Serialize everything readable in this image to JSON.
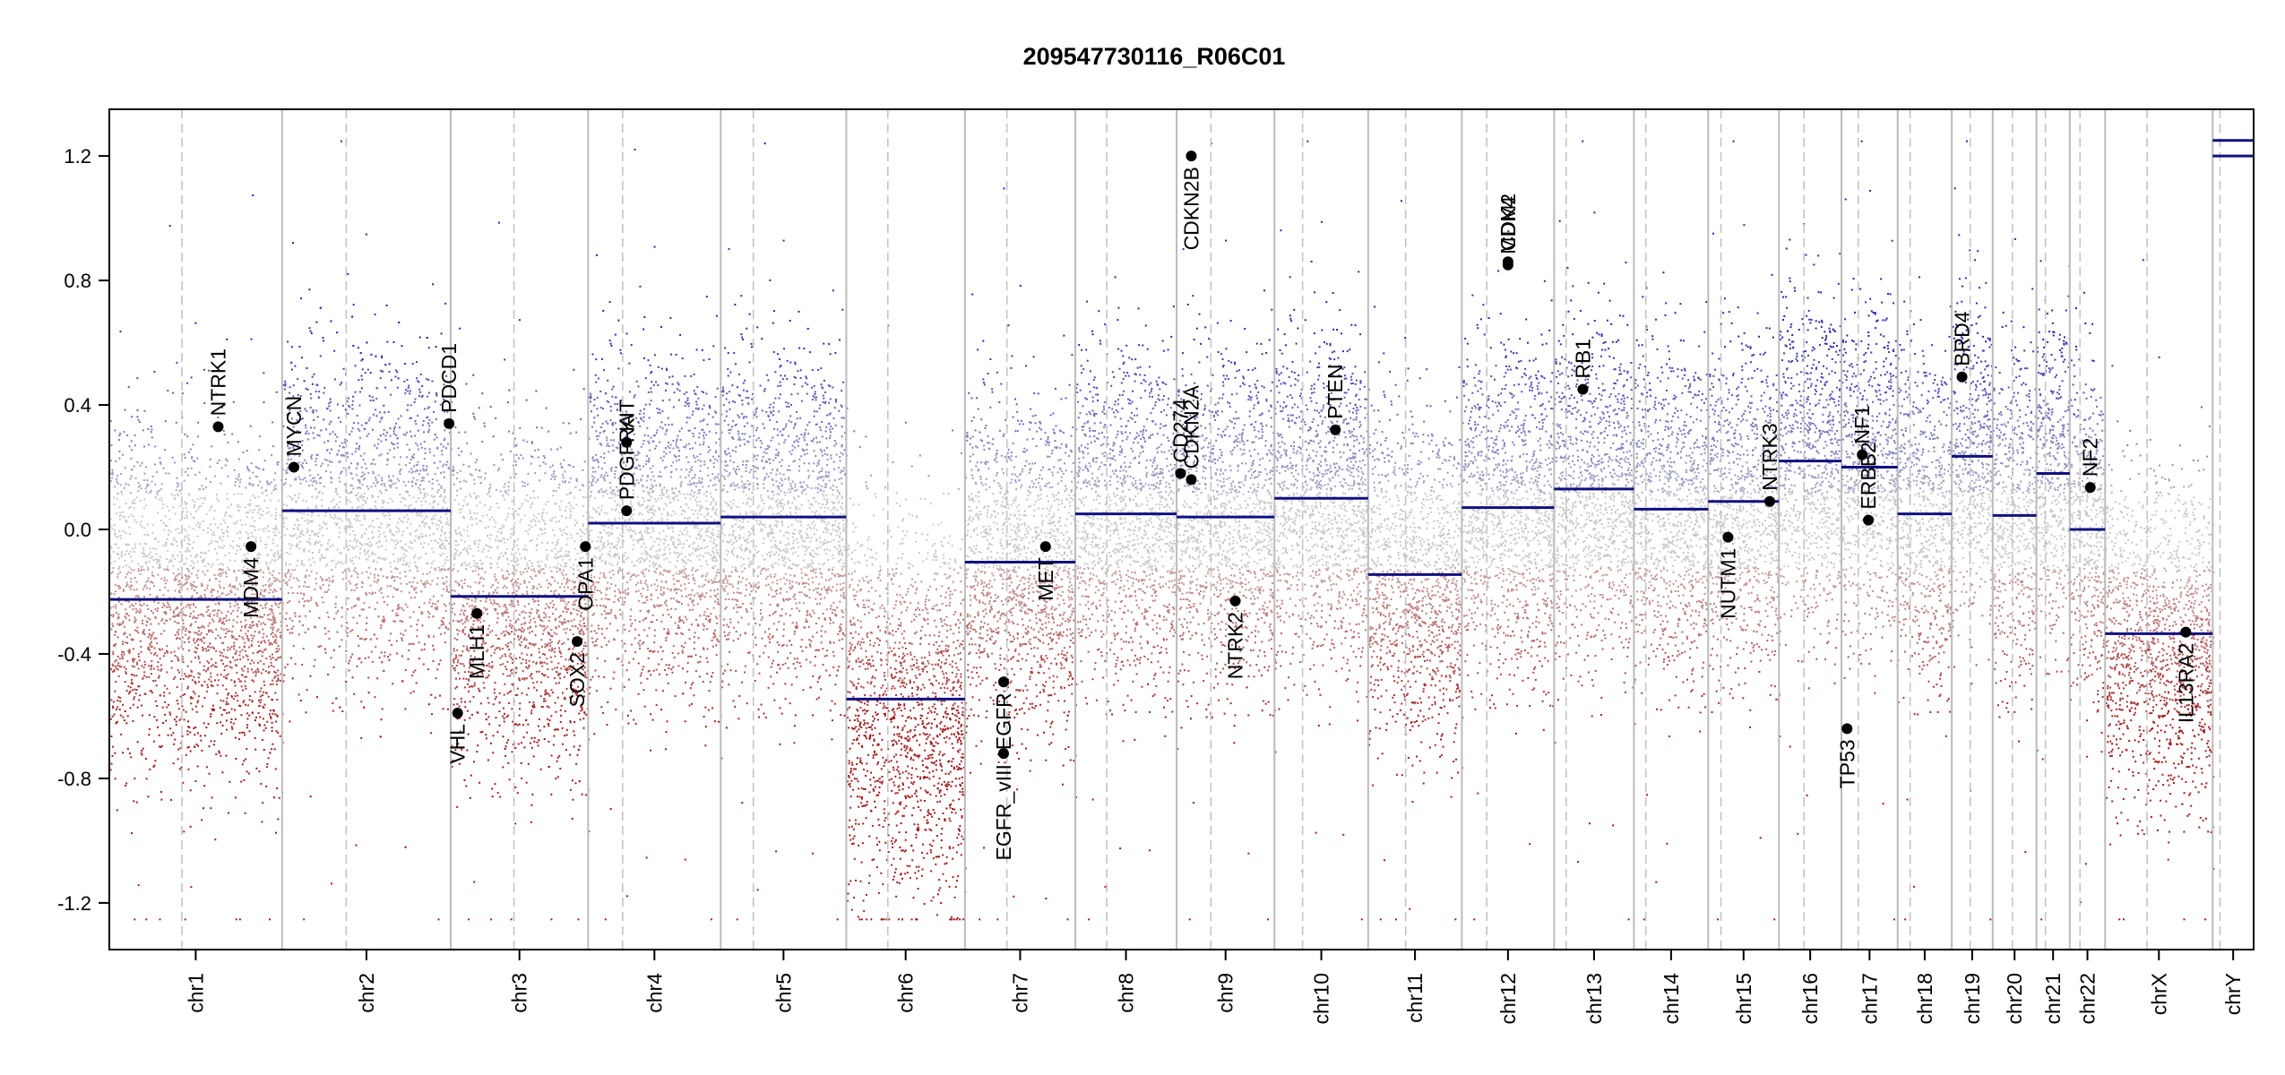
{
  "chart_data": {
    "type": "scatter",
    "title": "209547730116_R06C01",
    "xlabel": "",
    "ylabel": "",
    "ylim": [
      -1.35,
      1.35
    ],
    "y_ticks": [
      -1.2,
      -0.8,
      -0.4,
      0.0,
      0.4,
      0.8,
      1.2
    ],
    "y_tick_labels": [
      "-1.2",
      "-0.8",
      "-0.4",
      "0.0",
      "0.4",
      "0.8",
      "1.2"
    ],
    "chromosomes": [
      {
        "name": "chr1",
        "size": 249,
        "centromere": 0.42
      },
      {
        "name": "chr2",
        "size": 243,
        "centromere": 0.38
      },
      {
        "name": "chr3",
        "size": 198,
        "centromere": 0.46
      },
      {
        "name": "chr4",
        "size": 191,
        "centromere": 0.26
      },
      {
        "name": "chr5",
        "size": 181,
        "centromere": 0.26
      },
      {
        "name": "chr6",
        "size": 171,
        "centromere": 0.35
      },
      {
        "name": "chr7",
        "size": 159,
        "centromere": 0.38
      },
      {
        "name": "chr8",
        "size": 146,
        "centromere": 0.31
      },
      {
        "name": "chr9",
        "size": 141,
        "centromere": 0.35
      },
      {
        "name": "chr10",
        "size": 135,
        "centromere": 0.3
      },
      {
        "name": "chr11",
        "size": 135,
        "centromere": 0.4
      },
      {
        "name": "chr12",
        "size": 133,
        "centromere": 0.27
      },
      {
        "name": "chr13",
        "size": 115,
        "centromere": 0.15
      },
      {
        "name": "chr14",
        "size": 107,
        "centromere": 0.16
      },
      {
        "name": "chr15",
        "size": 102,
        "centromere": 0.18
      },
      {
        "name": "chr16",
        "size": 90,
        "centromere": 0.4
      },
      {
        "name": "chr17",
        "size": 81,
        "centromere": 0.3
      },
      {
        "name": "chr18",
        "size": 78,
        "centromere": 0.23
      },
      {
        "name": "chr19",
        "size": 59,
        "centromere": 0.45
      },
      {
        "name": "chr20",
        "size": 63,
        "centromere": 0.45
      },
      {
        "name": "chr21",
        "size": 48,
        "centromere": 0.27
      },
      {
        "name": "chr22",
        "size": 51,
        "centromere": 0.29
      },
      {
        "name": "chrX",
        "size": 155,
        "centromere": 0.39
      },
      {
        "name": "chrY",
        "size": 59,
        "centromere": 0.18
      }
    ],
    "segments": [
      {
        "chr": "chr1",
        "start": 0,
        "end": 1,
        "value": -0.225
      },
      {
        "chr": "chr2",
        "start": 0,
        "end": 1,
        "value": 0.06
      },
      {
        "chr": "chr3",
        "start": 0,
        "end": 1,
        "value": -0.215
      },
      {
        "chr": "chr4",
        "start": 0,
        "end": 1,
        "value": 0.02
      },
      {
        "chr": "chr5",
        "start": 0,
        "end": 1,
        "value": 0.04
      },
      {
        "chr": "chr6",
        "start": 0,
        "end": 1,
        "value": -0.545
      },
      {
        "chr": "chr7",
        "start": 0,
        "end": 1,
        "value": -0.105
      },
      {
        "chr": "chr8",
        "start": 0,
        "end": 1,
        "value": 0.05
      },
      {
        "chr": "chr9",
        "start": 0,
        "end": 1,
        "value": 0.04
      },
      {
        "chr": "chr10",
        "start": 0,
        "end": 1,
        "value": 0.1
      },
      {
        "chr": "chr11",
        "start": 0,
        "end": 1,
        "value": -0.145
      },
      {
        "chr": "chr12",
        "start": 0,
        "end": 1,
        "value": 0.07
      },
      {
        "chr": "chr13",
        "start": 0,
        "end": 1,
        "value": 0.13
      },
      {
        "chr": "chr14",
        "start": 0,
        "end": 1,
        "value": 0.065
      },
      {
        "chr": "chr15",
        "start": 0,
        "end": 1,
        "value": 0.09
      },
      {
        "chr": "chr16",
        "start": 0,
        "end": 1,
        "value": 0.22
      },
      {
        "chr": "chr17",
        "start": 0,
        "end": 1,
        "value": 0.2
      },
      {
        "chr": "chr18",
        "start": 0,
        "end": 1,
        "value": 0.05
      },
      {
        "chr": "chr19",
        "start": 0,
        "end": 1,
        "value": 0.235
      },
      {
        "chr": "chr20",
        "start": 0,
        "end": 1,
        "value": 0.045
      },
      {
        "chr": "chr21",
        "start": 0,
        "end": 1,
        "value": 0.18
      },
      {
        "chr": "chr22",
        "start": 0,
        "end": 1,
        "value": 0.0
      },
      {
        "chr": "chrX",
        "start": 0,
        "end": 1,
        "value": -0.335
      },
      {
        "chr": "chrY",
        "start": 0,
        "end": 1,
        "value": 1.2
      },
      {
        "chr": "chrY",
        "start": 0,
        "end": 1,
        "value": 1.25
      }
    ],
    "genes": [
      {
        "name": "NTRK1",
        "chr": "chr1",
        "pos": 0.63,
        "value": 0.33,
        "label_side": "above"
      },
      {
        "name": "MDM4",
        "chr": "chr1",
        "pos": 0.82,
        "value": -0.055,
        "label_side": "below"
      },
      {
        "name": "MYCN",
        "chr": "chr2",
        "pos": 0.07,
        "value": 0.2,
        "label_side": "above"
      },
      {
        "name": "PDCD1",
        "chr": "chr2",
        "pos": 0.99,
        "value": 0.34,
        "label_side": "above"
      },
      {
        "name": "VHL",
        "chr": "chr3",
        "pos": 0.05,
        "value": -0.59,
        "label_side": "below"
      },
      {
        "name": "MLH1",
        "chr": "chr3",
        "pos": 0.19,
        "value": -0.27,
        "label_side": "below"
      },
      {
        "name": "SOX2",
        "chr": "chr3",
        "pos": 0.92,
        "value": -0.36,
        "label_side": "below"
      },
      {
        "name": "OPA1",
        "chr": "chr3",
        "pos": 0.98,
        "value": -0.055,
        "label_side": "below"
      },
      {
        "name": "PDGFRA",
        "chr": "chr4",
        "pos": 0.29,
        "value": 0.06,
        "label_side": "above"
      },
      {
        "name": "KIT",
        "chr": "chr4",
        "pos": 0.29,
        "value": 0.28,
        "label_side": "above"
      },
      {
        "name": "EGFR_vIII",
        "chr": "chr7",
        "pos": 0.35,
        "value": -0.72,
        "label_side": "below"
      },
      {
        "name": "EGFR",
        "chr": "chr7",
        "pos": 0.35,
        "value": -0.49,
        "label_side": "below"
      },
      {
        "name": "MET",
        "chr": "chr7",
        "pos": 0.73,
        "value": -0.055,
        "label_side": "below"
      },
      {
        "name": "CD274",
        "chr": "chr9",
        "pos": 0.04,
        "value": 0.18,
        "label_side": "above"
      },
      {
        "name": "CDKN2A",
        "chr": "chr9",
        "pos": 0.15,
        "value": 0.16,
        "label_side": "above"
      },
      {
        "name": "CDKN2B",
        "chr": "chr9",
        "pos": 0.15,
        "value": 1.2,
        "label_side": "below"
      },
      {
        "name": "NTRK2",
        "chr": "chr9",
        "pos": 0.6,
        "value": -0.23,
        "label_side": "below"
      },
      {
        "name": "PTEN",
        "chr": "chr10",
        "pos": 0.65,
        "value": 0.32,
        "label_side": "above"
      },
      {
        "name": "MDM2",
        "chr": "chr12",
        "pos": 0.5,
        "value": 0.85,
        "label_side": "above"
      },
      {
        "name": "CDK4",
        "chr": "chr12",
        "pos": 0.5,
        "value": 0.86,
        "label_side": "above"
      },
      {
        "name": "RB1",
        "chr": "chr13",
        "pos": 0.36,
        "value": 0.45,
        "label_side": "above"
      },
      {
        "name": "NUTM1",
        "chr": "chr15",
        "pos": 0.28,
        "value": -0.025,
        "label_side": "below"
      },
      {
        "name": "NTRK3",
        "chr": "chr15",
        "pos": 0.87,
        "value": 0.09,
        "label_side": "above"
      },
      {
        "name": "TP53",
        "chr": "chr17",
        "pos": 0.1,
        "value": -0.64,
        "label_side": "below"
      },
      {
        "name": "ERBB2",
        "chr": "chr17",
        "pos": 0.48,
        "value": 0.03,
        "label_side": "above"
      },
      {
        "name": "NF1",
        "chr": "chr17",
        "pos": 0.37,
        "value": 0.24,
        "label_side": "above"
      },
      {
        "name": "BRD4",
        "chr": "chr19",
        "pos": 0.25,
        "value": 0.49,
        "label_side": "above"
      },
      {
        "name": "NF2",
        "chr": "chr22",
        "pos": 0.58,
        "value": 0.135,
        "label_side": "above"
      },
      {
        "name": "IL13RA2",
        "chr": "chrX",
        "pos": 0.75,
        "value": -0.33,
        "label_side": "below"
      }
    ],
    "point_colors": {
      "gain": "#2c2ca8",
      "loss": "#a81c1c",
      "neutral": "#c8c8c8"
    },
    "segment_color": "#101080",
    "grid": false
  }
}
